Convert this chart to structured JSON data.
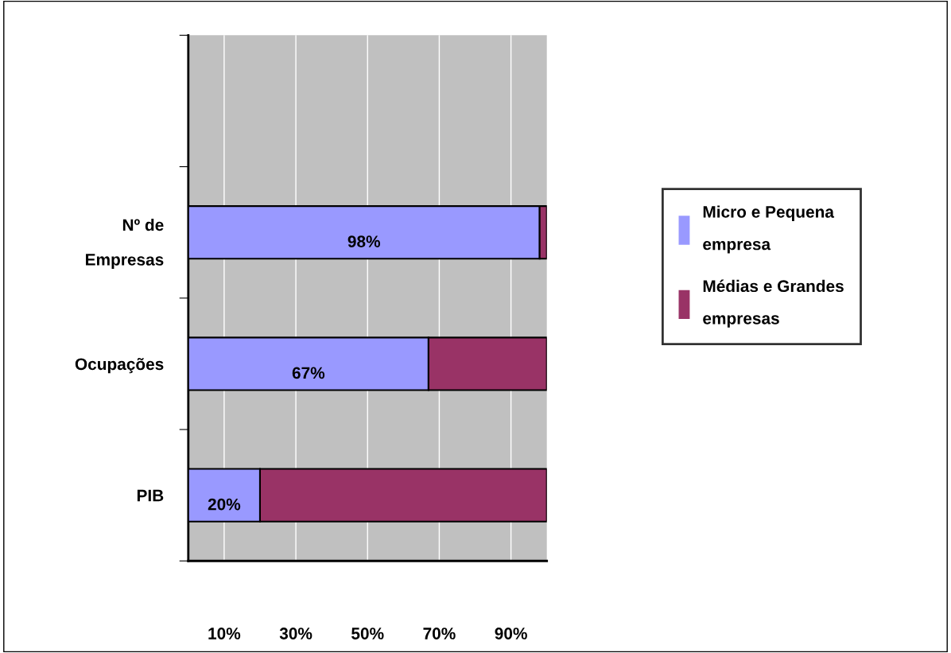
{
  "chart_data": {
    "type": "bar",
    "orientation": "horizontal",
    "stacked": true,
    "categories": [
      null,
      "Nº de\nEmpresas",
      "Ocupações",
      "PIB"
    ],
    "series": [
      {
        "name": "Micro e Pequena\nempresa",
        "color": "#9999ff",
        "values": [
          null,
          98,
          67,
          20
        ],
        "value_labels": [
          null,
          "98%",
          "67%",
          "20%"
        ]
      },
      {
        "name": "Médias e Grandes\nempresas",
        "color": "#993366",
        "values": [
          null,
          2,
          33,
          80
        ]
      }
    ],
    "xlim": [
      0,
      100
    ],
    "xticks": [
      {
        "value": 10,
        "label": "10%"
      },
      {
        "value": 30,
        "label": "30%"
      },
      {
        "value": 50,
        "label": "50%"
      },
      {
        "value": 70,
        "label": "70%"
      },
      {
        "value": 90,
        "label": "90%"
      }
    ],
    "grid": "x",
    "legend": "right"
  }
}
